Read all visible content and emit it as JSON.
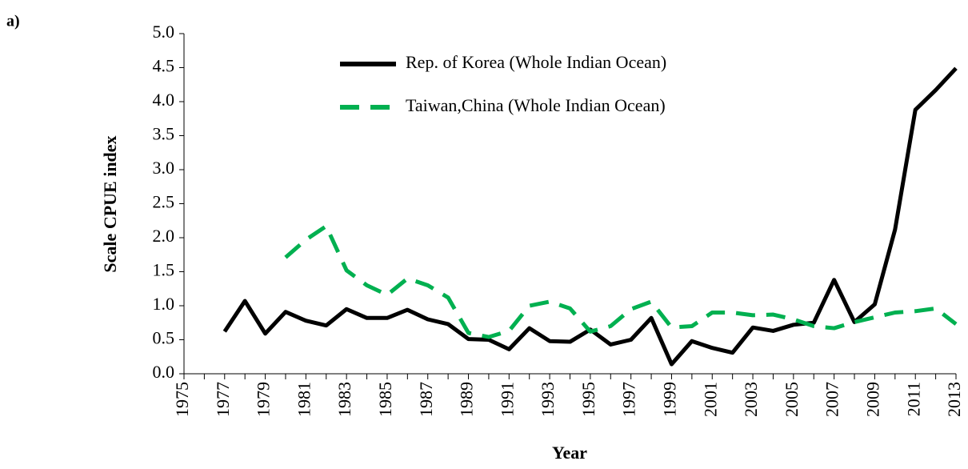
{
  "panel_label": "a)",
  "chart_data": {
    "type": "line",
    "x_label": "Year",
    "y_label": "Scale CPUE index",
    "categories": [
      "1975",
      null,
      "1977",
      null,
      "1979",
      null,
      "1981",
      null,
      "1983",
      null,
      "1985",
      null,
      "1987",
      null,
      "1989",
      null,
      "1991",
      null,
      "1993",
      null,
      "1995",
      null,
      "1997",
      null,
      "1999",
      null,
      "2001",
      null,
      "2003",
      null,
      "2005",
      null,
      "2007",
      null,
      "2009",
      null,
      "2011",
      null,
      "2013"
    ],
    "ylim": [
      0,
      5
    ],
    "yticks": [
      {
        "value": 0,
        "label": "0.0"
      },
      {
        "value": 0.5,
        "label": "0.5"
      },
      {
        "value": 1,
        "label": "1.0"
      },
      {
        "value": 1.5,
        "label": "1.5"
      },
      {
        "value": 2,
        "label": "2.0"
      },
      {
        "value": 2.5,
        "label": "2.5"
      },
      {
        "value": 3,
        "label": "3.0"
      },
      {
        "value": 3.5,
        "label": "3.5"
      },
      {
        "value": 4,
        "label": "4.0"
      },
      {
        "value": 4.5,
        "label": "4.5"
      },
      {
        "value": 5,
        "label": "5.0"
      }
    ],
    "series": [
      {
        "name": "Rep. of Korea (Whole Indian Ocean)",
        "color": "#000000",
        "dash": "solid",
        "values": [
          null,
          null,
          0.62,
          1.07,
          0.59,
          0.91,
          0.78,
          0.71,
          0.95,
          0.82,
          0.82,
          0.94,
          0.8,
          0.73,
          0.51,
          0.5,
          0.36,
          0.67,
          0.48,
          0.47,
          0.65,
          0.43,
          0.5,
          0.82,
          0.14,
          0.48,
          0.38,
          0.31,
          0.68,
          0.63,
          0.72,
          0.75,
          1.38,
          0.76,
          1.02,
          2.12,
          3.88,
          4.17,
          4.49
        ]
      },
      {
        "name": "Taiwan,China (Whole Indian Ocean)",
        "color": "#00b050",
        "dash": "dashed",
        "values": [
          null,
          null,
          null,
          null,
          null,
          1.71,
          1.97,
          2.17,
          1.52,
          1.3,
          1.16,
          1.4,
          1.3,
          1.12,
          0.6,
          0.54,
          0.63,
          1.0,
          1.06,
          0.96,
          0.62,
          0.7,
          0.95,
          1.06,
          0.68,
          0.7,
          0.9,
          0.9,
          0.86,
          0.87,
          0.8,
          0.7,
          0.67,
          0.76,
          0.83,
          0.9,
          0.92,
          0.96,
          0.73
        ]
      }
    ]
  }
}
